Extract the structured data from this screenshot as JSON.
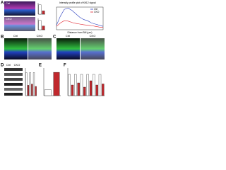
{
  "a": {
    "label": "A",
    "rows": [
      "Ctrl",
      "CKO"
    ],
    "bar1": {
      "values": [
        1.0,
        0.35
      ]
    },
    "bar2": {
      "values": [
        1.0,
        0.4
      ]
    },
    "profile": {
      "title": "Intensity profile plot of Kif12 signal",
      "xlabel": "Distance from BM (μm)",
      "x": [
        0,
        2,
        4,
        6,
        8,
        10,
        12,
        14,
        16,
        18,
        20,
        22,
        24
      ],
      "series": [
        {
          "name": "Ctrl",
          "color": "#2b3fbf",
          "values": [
            20,
            60,
            90,
            95,
            85,
            70,
            55,
            45,
            40,
            30,
            25,
            20,
            15
          ]
        },
        {
          "name": "CKO",
          "color": "#e0202a",
          "values": [
            15,
            30,
            40,
            38,
            32,
            28,
            25,
            22,
            20,
            18,
            15,
            12,
            10
          ]
        }
      ]
    }
  },
  "b": {
    "label": "B",
    "cols": [
      "Ctrl",
      "CKO"
    ]
  },
  "c": {
    "label": "C",
    "cols": [
      "Ctrl",
      "CKO"
    ]
  },
  "d": {
    "label": "D",
    "cols": [
      "Ctrl",
      "CKO"
    ],
    "bars": {
      "values": [
        1.0,
        0.45,
        1.0,
        0.5,
        1.0,
        0.4
      ]
    }
  },
  "e": {
    "label": "E",
    "values": [
      1.0,
      3.8
    ]
  },
  "f": {
    "label": "F",
    "values": [
      1.0,
      0.5,
      1.0,
      0.6,
      1.0,
      0.4,
      1.0,
      0.7,
      1.0,
      0.5,
      1.0,
      0.55
    ]
  }
}
